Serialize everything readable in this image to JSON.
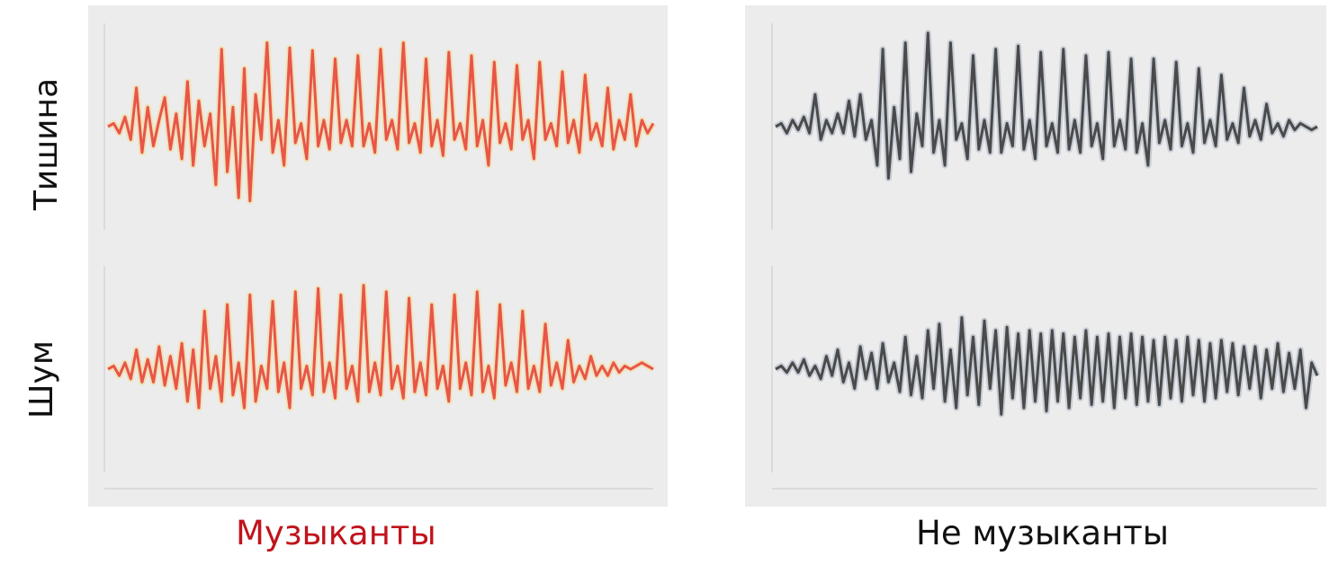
{
  "labels": {
    "row_top": "Тишина",
    "row_bottom": "Шум",
    "col_left": "Музыканты",
    "col_right": "Не музыканты"
  },
  "colors": {
    "musicians": "#e8554a",
    "musicians_glow": "#f6d98a",
    "non_musicians": "#4a4a4a",
    "non_musicians_glow": "#a9b4c4",
    "col_left_label": "#c0141c",
    "col_right_label": "#111111",
    "panel_bg": "#ececec"
  },
  "chart_data": [
    {
      "type": "line",
      "group": "Музыканты",
      "condition": "Тишина",
      "x": [
        0,
        20,
        40,
        60,
        80,
        100,
        120,
        140,
        160,
        180,
        200,
        220,
        240,
        260,
        280,
        300,
        320,
        340,
        360,
        380,
        400,
        420,
        440,
        460,
        480,
        500,
        520,
        540,
        560,
        580,
        600,
        620,
        640,
        660,
        680,
        700,
        720,
        740,
        760,
        780,
        800,
        820,
        840,
        860,
        880,
        900,
        920,
        940,
        960,
        980,
        1000,
        1020,
        1040,
        1060,
        1080,
        1100,
        1120,
        1140,
        1160,
        1180,
        1200,
        1220,
        1240,
        1260,
        1280,
        1300,
        1320,
        1340,
        1360,
        1380,
        1400,
        1420,
        1440,
        1460,
        1480,
        1500,
        1520,
        1540,
        1560,
        1580,
        1600,
        1620,
        1640,
        1660,
        1680,
        1700,
        1720,
        1740,
        1760,
        1780,
        1800,
        1820,
        1840,
        1860,
        1880,
        1900,
        1920
      ],
      "values": [
        0.0,
        0.05,
        -0.1,
        0.15,
        -0.2,
        0.6,
        -0.4,
        0.3,
        -0.3,
        0.1,
        0.45,
        -0.35,
        0.2,
        -0.5,
        0.7,
        -0.6,
        0.4,
        -0.3,
        0.2,
        -0.9,
        1.2,
        -0.7,
        0.3,
        -1.1,
        0.9,
        -1.15,
        0.5,
        -0.2,
        1.3,
        -0.4,
        0.1,
        -0.6,
        1.22,
        -0.25,
        0.05,
        -0.5,
        1.18,
        -0.3,
        0.1,
        -0.35,
        1.05,
        -0.25,
        0.1,
        -0.3,
        1.1,
        -0.3,
        0.05,
        -0.4,
        1.2,
        -0.2,
        0.1,
        -0.35,
        1.3,
        -0.25,
        0.05,
        -0.4,
        1.05,
        -0.3,
        0.1,
        -0.45,
        1.15,
        -0.2,
        0.05,
        -0.35,
        1.1,
        -0.3,
        0.1,
        -0.6,
        1.0,
        -0.25,
        0.05,
        -0.35,
        0.95,
        -0.2,
        0.1,
        -0.5,
        1.0,
        -0.2,
        0.05,
        -0.3,
        0.85,
        -0.25,
        0.1,
        -0.4,
        0.8,
        -0.2,
        0.05,
        -0.3,
        0.6,
        -0.35,
        0.1,
        -0.2,
        0.5,
        -0.3,
        0.1,
        -0.1,
        0.05
      ],
      "ylim": [
        -1.6,
        1.6
      ]
    },
    {
      "type": "line",
      "group": "Не музыканты",
      "condition": "Тишина",
      "x": [
        0,
        20,
        40,
        60,
        80,
        100,
        120,
        140,
        160,
        180,
        200,
        220,
        240,
        260,
        280,
        300,
        320,
        340,
        360,
        380,
        400,
        420,
        440,
        460,
        480,
        500,
        520,
        540,
        560,
        580,
        600,
        620,
        640,
        660,
        680,
        700,
        720,
        740,
        760,
        780,
        800,
        820,
        840,
        860,
        880,
        900,
        920,
        940,
        960,
        980,
        1000,
        1020,
        1040,
        1060,
        1080,
        1100,
        1120,
        1140,
        1160,
        1180,
        1200,
        1220,
        1240,
        1260,
        1280,
        1300,
        1320,
        1340,
        1360,
        1380,
        1400,
        1420,
        1440,
        1460,
        1480,
        1500,
        1520,
        1540,
        1560,
        1580,
        1600,
        1620,
        1640,
        1660,
        1680,
        1700,
        1720,
        1740,
        1760,
        1780,
        1800,
        1820,
        1840,
        1860,
        1880,
        1900,
        1920
      ],
      "values": [
        0.0,
        0.05,
        -0.1,
        0.1,
        -0.05,
        0.15,
        -0.1,
        0.5,
        -0.2,
        0.1,
        -0.1,
        0.2,
        -0.1,
        0.4,
        -0.15,
        0.5,
        -0.2,
        0.1,
        -0.6,
        1.2,
        -0.8,
        0.3,
        -0.5,
        1.3,
        -0.7,
        0.2,
        -0.3,
        1.45,
        -0.4,
        0.1,
        -0.6,
        1.3,
        -0.2,
        0.05,
        -0.5,
        1.1,
        -0.35,
        0.1,
        -0.4,
        1.2,
        -0.4,
        0.05,
        -0.3,
        1.25,
        -0.35,
        0.1,
        -0.5,
        1.15,
        -0.3,
        0.05,
        -0.4,
        1.2,
        -0.35,
        0.1,
        -0.4,
        1.1,
        -0.3,
        0.05,
        -0.5,
        1.15,
        -0.3,
        0.1,
        -0.35,
        1.05,
        -0.4,
        0.05,
        -0.6,
        1.05,
        -0.25,
        0.1,
        -0.35,
        1.0,
        -0.3,
        0.05,
        -0.4,
        0.9,
        -0.25,
        0.1,
        -0.3,
        0.8,
        -0.2,
        0.05,
        -0.25,
        0.6,
        -0.15,
        0.1,
        -0.2,
        0.35,
        -0.1,
        0.05,
        -0.15,
        0.1,
        -0.05,
        0.05,
        0.0,
        -0.05,
        0.0
      ],
      "ylim": [
        -1.6,
        1.6
      ]
    },
    {
      "type": "line",
      "group": "Музыканты",
      "condition": "Шум",
      "x": [
        0,
        20,
        40,
        60,
        80,
        100,
        120,
        140,
        160,
        180,
        200,
        220,
        240,
        260,
        280,
        300,
        320,
        340,
        360,
        380,
        400,
        420,
        440,
        460,
        480,
        500,
        520,
        540,
        560,
        580,
        600,
        620,
        640,
        660,
        680,
        700,
        720,
        740,
        760,
        780,
        800,
        820,
        840,
        860,
        880,
        900,
        920,
        940,
        960,
        980,
        1000,
        1020,
        1040,
        1060,
        1080,
        1100,
        1120,
        1140,
        1160,
        1180,
        1200,
        1220,
        1240,
        1260,
        1280,
        1300,
        1320,
        1340,
        1360,
        1380,
        1400,
        1420,
        1440,
        1460,
        1480,
        1500,
        1520,
        1540,
        1560,
        1580,
        1600,
        1620,
        1640,
        1660,
        1680,
        1700,
        1720,
        1740,
        1760,
        1780,
        1800,
        1820,
        1840,
        1860,
        1880,
        1900,
        1920
      ],
      "values": [
        0.0,
        0.05,
        -0.1,
        0.1,
        -0.15,
        0.3,
        -0.2,
        0.15,
        -0.2,
        0.35,
        -0.25,
        0.2,
        -0.3,
        0.4,
        -0.5,
        0.3,
        -0.6,
        0.9,
        -0.3,
        0.2,
        -0.5,
        1.0,
        -0.4,
        0.1,
        -0.6,
        1.15,
        -0.5,
        0.05,
        -0.3,
        1.05,
        -0.35,
        0.1,
        -0.6,
        1.2,
        -0.3,
        0.05,
        -0.4,
        1.25,
        -0.35,
        0.1,
        -0.45,
        1.15,
        -0.3,
        0.05,
        -0.5,
        1.3,
        -0.35,
        0.1,
        -0.4,
        1.2,
        -0.3,
        0.05,
        -0.45,
        1.1,
        -0.35,
        0.1,
        -0.4,
        1.0,
        -0.3,
        0.05,
        -0.5,
        1.15,
        -0.3,
        0.1,
        -0.4,
        1.2,
        -0.35,
        0.05,
        -0.45,
        1.0,
        -0.25,
        0.1,
        -0.35,
        0.9,
        -0.3,
        0.05,
        -0.35,
        0.7,
        -0.25,
        0.1,
        -0.3,
        0.45,
        -0.2,
        0.05,
        -0.15,
        0.2,
        -0.1,
        0.05,
        -0.1,
        0.1,
        -0.05,
        0.05,
        0.0,
        0.05,
        0.1,
        0.05,
        0.0
      ],
      "ylim": [
        -1.6,
        1.6
      ]
    },
    {
      "type": "line",
      "group": "Не музыканты",
      "condition": "Шум",
      "x": [
        0,
        20,
        40,
        60,
        80,
        100,
        120,
        140,
        160,
        180,
        200,
        220,
        240,
        260,
        280,
        300,
        320,
        340,
        360,
        380,
        400,
        420,
        440,
        460,
        480,
        500,
        520,
        540,
        560,
        580,
        600,
        620,
        640,
        660,
        680,
        700,
        720,
        740,
        760,
        780,
        800,
        820,
        840,
        860,
        880,
        900,
        920,
        940,
        960,
        980,
        1000,
        1020,
        1040,
        1060,
        1080,
        1100,
        1120,
        1140,
        1160,
        1180,
        1200,
        1220,
        1240,
        1260,
        1280,
        1300,
        1320,
        1340,
        1360,
        1380,
        1400,
        1420,
        1440,
        1460,
        1480,
        1500,
        1520,
        1540,
        1560,
        1580,
        1600,
        1620,
        1640,
        1660,
        1680,
        1700,
        1720,
        1740,
        1760,
        1780,
        1800,
        1820,
        1840,
        1860,
        1880,
        1900,
        1920
      ],
      "values": [
        0.0,
        0.05,
        -0.05,
        0.1,
        -0.05,
        0.15,
        -0.1,
        0.05,
        -0.15,
        0.2,
        -0.1,
        0.3,
        -0.2,
        0.1,
        -0.3,
        0.35,
        -0.15,
        0.25,
        -0.3,
        0.4,
        -0.2,
        0.1,
        -0.35,
        0.5,
        -0.4,
        0.2,
        -0.45,
        0.6,
        -0.3,
        0.7,
        -0.5,
        0.3,
        -0.6,
        0.8,
        -0.4,
        0.5,
        -0.55,
        0.75,
        -0.3,
        0.6,
        -0.7,
        0.65,
        -0.45,
        0.55,
        -0.6,
        0.6,
        -0.5,
        0.55,
        -0.65,
        0.6,
        -0.5,
        0.55,
        -0.6,
        0.5,
        -0.45,
        0.6,
        -0.55,
        0.5,
        -0.5,
        0.55,
        -0.6,
        0.5,
        -0.45,
        0.55,
        -0.55,
        0.5,
        -0.5,
        0.45,
        -0.55,
        0.5,
        -0.45,
        0.45,
        -0.5,
        0.5,
        -0.4,
        0.45,
        -0.5,
        0.4,
        -0.45,
        0.45,
        -0.35,
        0.4,
        -0.4,
        0.35,
        -0.3,
        0.35,
        -0.45,
        0.3,
        -0.3,
        0.4,
        -0.35,
        0.25,
        -0.3,
        0.3,
        -0.6,
        0.1,
        -0.1
      ],
      "ylim": [
        -1.6,
        1.6
      ]
    }
  ]
}
